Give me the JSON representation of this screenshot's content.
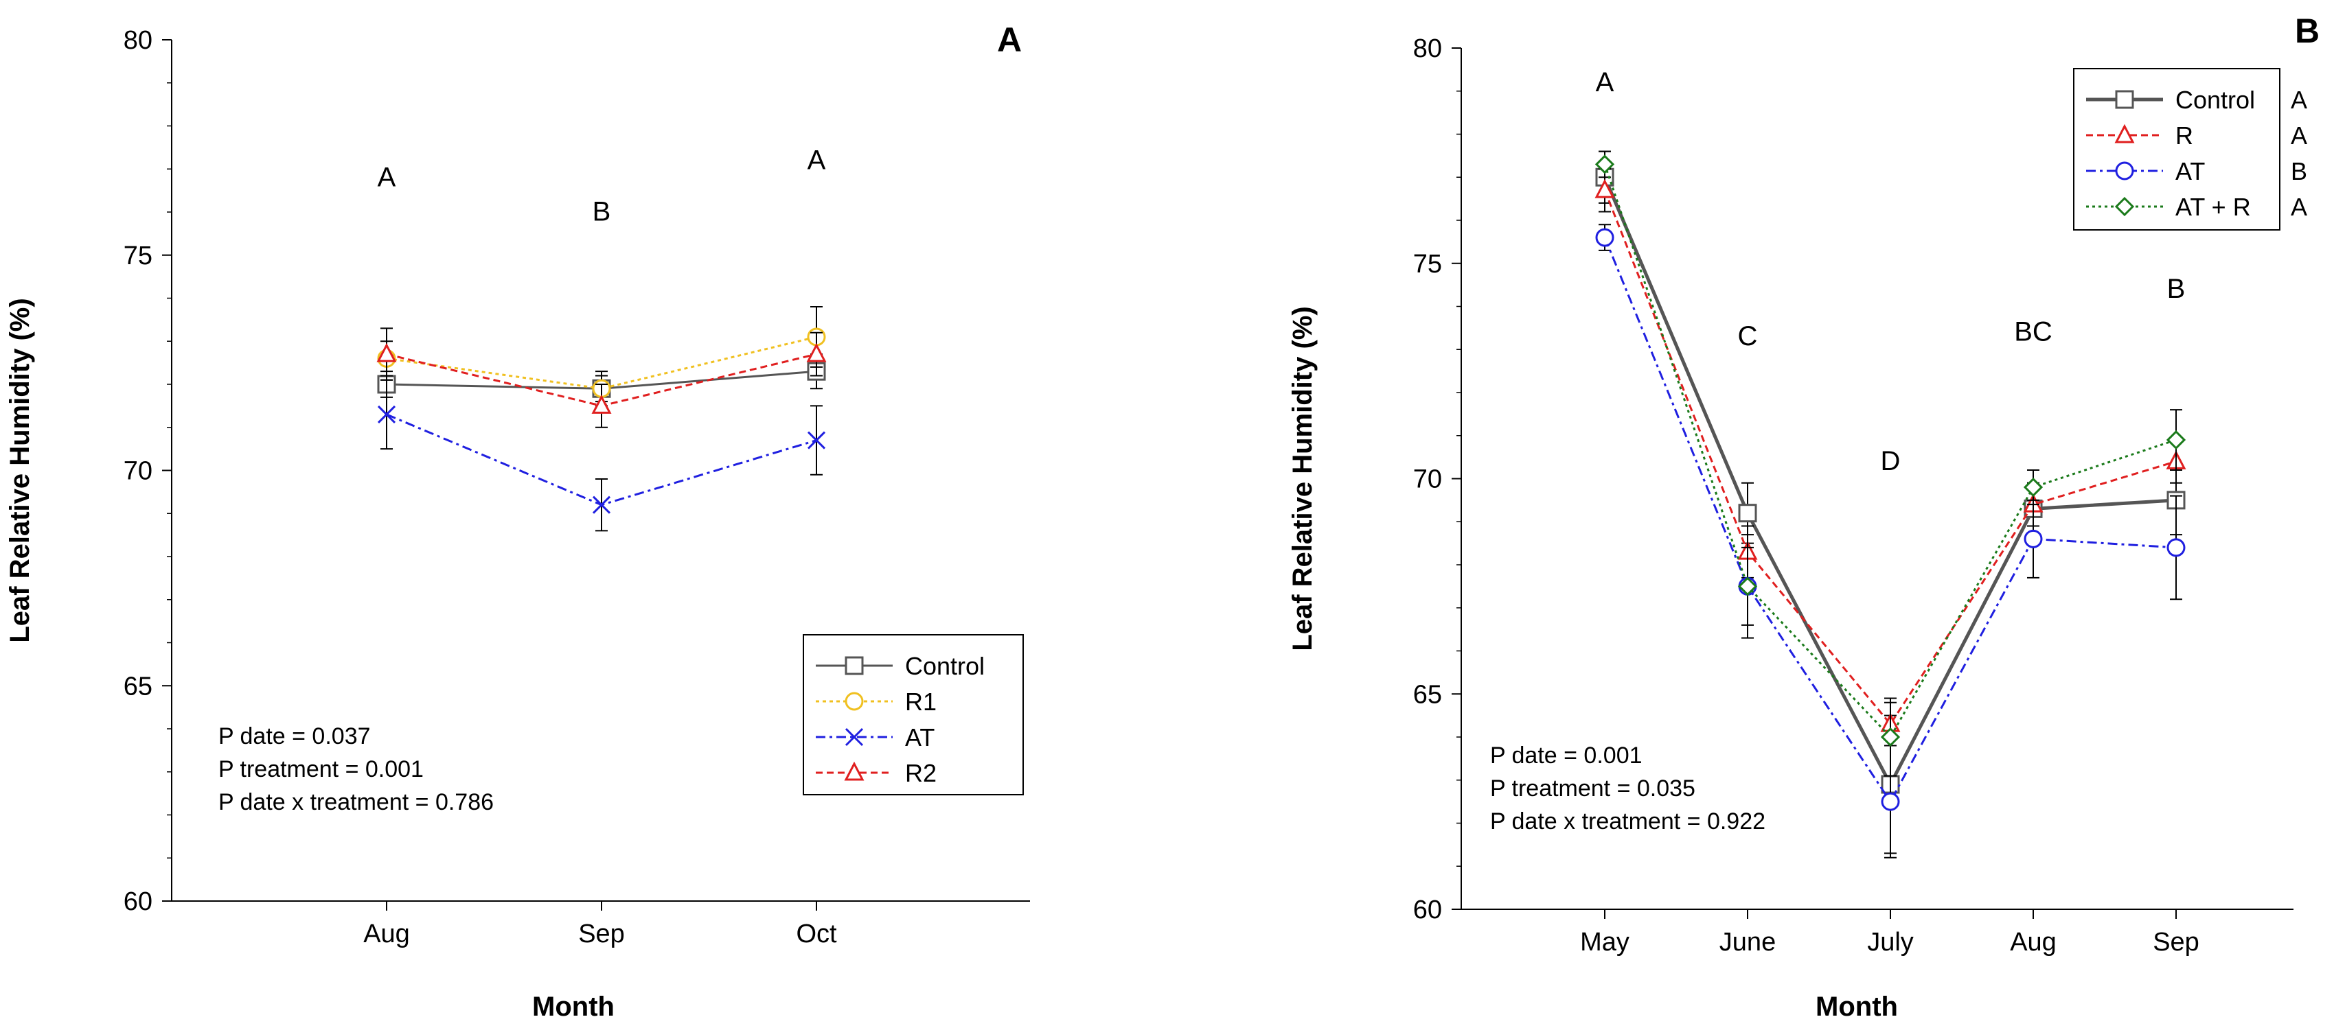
{
  "chart_data": [
    {
      "type": "line",
      "panel_label": "A",
      "xlabel": "Month",
      "ylabel": "Leaf Relative Humidity (%)",
      "ylim": [
        60,
        80
      ],
      "yticks": [
        "60",
        "65",
        "70",
        "75",
        "80"
      ],
      "categories": [
        "Aug",
        "Sep",
        "Oct"
      ],
      "sig_letters": [
        {
          "category": "Aug",
          "text": "A",
          "y": 76.6
        },
        {
          "category": "Sep",
          "text": "B",
          "y": 75.8
        },
        {
          "category": "Oct",
          "text": "A",
          "y": 77.0
        }
      ],
      "stats": [
        "P date = 0.037",
        "P treatment = 0.001",
        "P date x treatment = 0.786"
      ],
      "legend_position": "lower-right",
      "series": [
        {
          "name": "Control",
          "color": "#555555",
          "dash": "",
          "marker": "square",
          "values": [
            72.0,
            71.9,
            72.3
          ],
          "err": [
            0.3,
            0.3,
            0.4
          ]
        },
        {
          "name": "R1",
          "color": "#f0c020",
          "dash": "5,5",
          "marker": "circle",
          "values": [
            72.6,
            71.9,
            73.1
          ],
          "err": [
            0.4,
            0.4,
            0.7
          ]
        },
        {
          "name": "AT",
          "color": "#1f1fe0",
          "dash": "14,6,4,6",
          "marker": "x",
          "values": [
            71.3,
            69.2,
            70.7
          ],
          "err": [
            0.8,
            0.6,
            0.8
          ]
        },
        {
          "name": "R2",
          "color": "#e01f1f",
          "dash": "10,6",
          "marker": "triangle",
          "values": [
            72.7,
            71.5,
            72.7
          ],
          "err": [
            0.6,
            0.5,
            0.5
          ]
        }
      ]
    },
    {
      "type": "line",
      "panel_label": "B",
      "xlabel": "Month",
      "ylabel": "Leaf Relative Humidity (%)",
      "ylim": [
        60,
        80
      ],
      "yticks": [
        "60",
        "65",
        "70",
        "75",
        "80"
      ],
      "categories": [
        "May",
        "June",
        "July",
        "Aug",
        "Sep"
      ],
      "sig_letters": [
        {
          "category": "May",
          "text": "A",
          "y": 79.0
        },
        {
          "category": "June",
          "text": "C",
          "y": 73.1
        },
        {
          "category": "July",
          "text": "D",
          "y": 70.2
        },
        {
          "category": "Aug",
          "text": "BC",
          "y": 73.2
        },
        {
          "category": "Sep",
          "text": "B",
          "y": 74.2
        }
      ],
      "stats": [
        "P date = 0.001",
        "P treatment = 0.035",
        "P date x treatment = 0.922"
      ],
      "legend_position": "top-right",
      "series": [
        {
          "name": "Control",
          "sig": "A",
          "color": "#555555",
          "dash": "",
          "width": 5,
          "marker": "square",
          "values": [
            77.0,
            69.2,
            62.9,
            69.3,
            69.5
          ],
          "err": [
            0.6,
            0.7,
            1.6,
            0.6,
            0.8
          ]
        },
        {
          "name": "R",
          "sig": "A",
          "color": "#e01f1f",
          "dash": "10,6",
          "marker": "triangle",
          "values": [
            76.7,
            68.3,
            64.3,
            69.4,
            70.4
          ],
          "err": [
            0.5,
            0.6,
            0.5,
            0.5,
            0.5
          ]
        },
        {
          "name": "AT",
          "sig": "B",
          "color": "#1f1fe0",
          "dash": "14,6,4,6",
          "marker": "circle",
          "values": [
            75.6,
            67.5,
            62.5,
            68.6,
            68.4
          ],
          "err": [
            0.3,
            1.2,
            1.3,
            0.9,
            1.2
          ]
        },
        {
          "name": "AT + R",
          "sig": "A",
          "color": "#1a7a1a",
          "dash": "4,5",
          "marker": "diamond",
          "values": [
            77.3,
            67.5,
            64.0,
            69.8,
            70.9
          ],
          "err": [
            0.3,
            0.9,
            0.9,
            0.4,
            0.7
          ]
        }
      ]
    }
  ]
}
